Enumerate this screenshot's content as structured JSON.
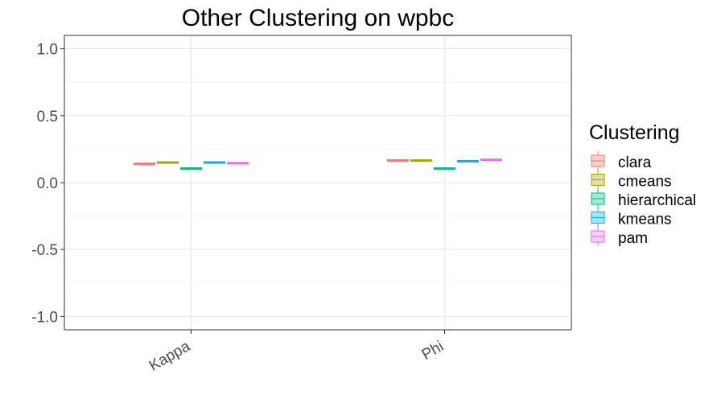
{
  "chart_data": {
    "type": "boxplot",
    "title": "Other Clustering on wpbc",
    "xlabel": "",
    "ylabel": "",
    "categories": [
      "Kappa",
      "Phi"
    ],
    "ylim": [
      -1.1,
      1.1
    ],
    "yticks": [
      1.0,
      0.5,
      0.0,
      -0.5,
      -1.0
    ],
    "ytick_labels": [
      "1.0",
      "0.5",
      "0.0",
      "-0.5",
      "-1.0"
    ],
    "grid": true,
    "legend": {
      "title": "Clustering",
      "position": "right"
    },
    "series": [
      {
        "name": "clara",
        "color": "#F8766D",
        "values": [
          0.14,
          0.165
        ]
      },
      {
        "name": "cmeans",
        "color": "#A3A500",
        "values": [
          0.15,
          0.165
        ]
      },
      {
        "name": "hierarchical",
        "color": "#00BF7D",
        "values": [
          0.105,
          0.105
        ]
      },
      {
        "name": "kmeans",
        "color": "#00B0F6",
        "values": [
          0.15,
          0.16
        ]
      },
      {
        "name": "pam",
        "color": "#E76BF3",
        "values": [
          0.145,
          0.17
        ]
      }
    ]
  }
}
